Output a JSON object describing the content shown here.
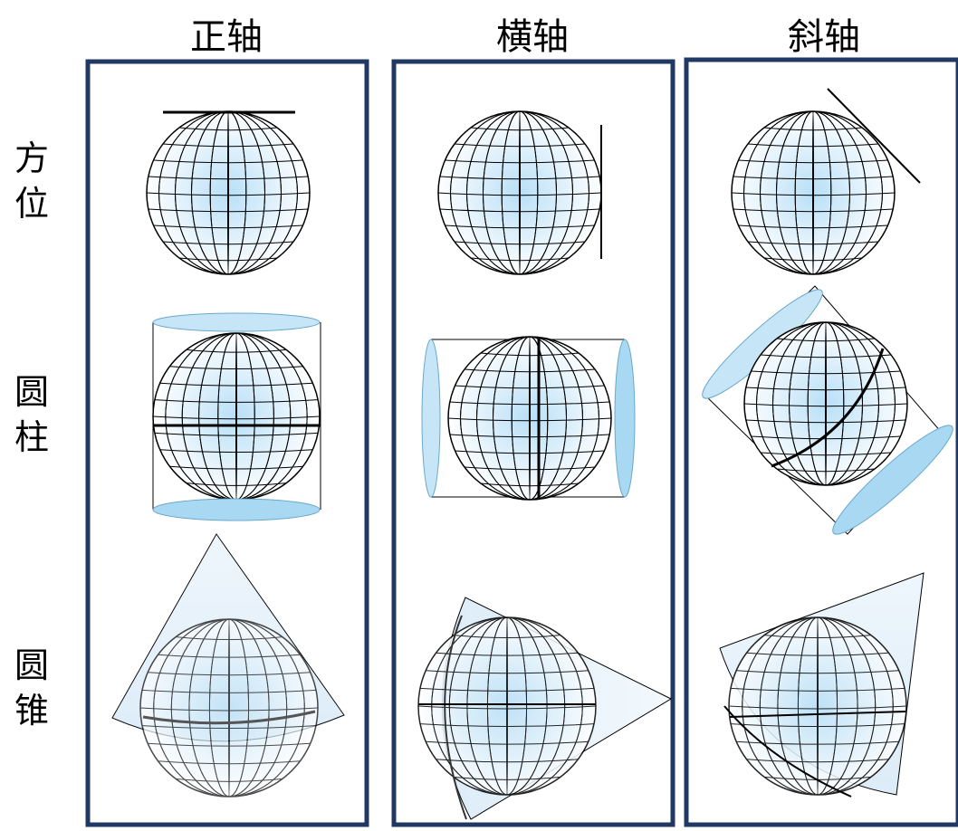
{
  "columns": {
    "normal": "正轴",
    "transverse": "横轴",
    "oblique": "斜轴"
  },
  "rows": {
    "azimuthal": [
      "方",
      "位"
    ],
    "cylindrical": [
      "圆",
      "柱"
    ],
    "conic": [
      "圆",
      "锥"
    ]
  },
  "colors": {
    "panel_border": "#1f3864",
    "globe_center": "#b8dff7",
    "globe_edge": "#ffffff",
    "surface_fill": "#a9d8f3",
    "cone_fill": "#dcecf8",
    "line": "#000000"
  }
}
